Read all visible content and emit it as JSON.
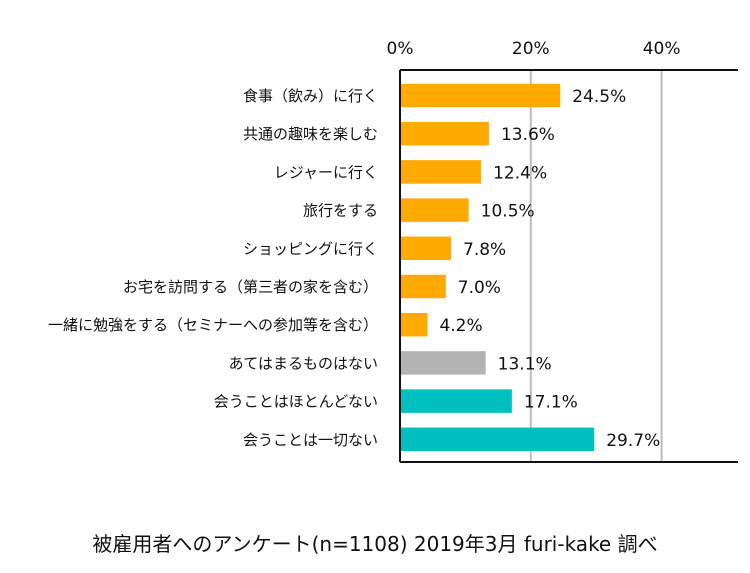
{
  "chart_data": {
    "type": "bar",
    "orientation": "horizontal",
    "categories": [
      "食事（飲み）に行く",
      "共通の趣味を楽しむ",
      "レジャーに行く",
      "旅行をする",
      "ショッピングに行く",
      "お宅を訪問する（第三者の家を含む）",
      "一緒に勉強をする（セミナーへの参加等を含む）",
      "あてはまるものはない",
      "会うことはほとんどない",
      "会うことは一切ない"
    ],
    "values": [
      24.5,
      13.6,
      12.4,
      10.5,
      7.8,
      7.0,
      4.2,
      13.1,
      17.1,
      29.7
    ],
    "value_labels": [
      "24.5%",
      "13.6%",
      "12.4%",
      "10.5%",
      "7.8%",
      "7.0%",
      "4.2%",
      "13.1%",
      "17.1%",
      "29.7%"
    ],
    "bar_colors": [
      "#FFAA00",
      "#FFAA00",
      "#FFAA00",
      "#FFAA00",
      "#FFAA00",
      "#FFAA00",
      "#FFAA00",
      "#B3B3B3",
      "#00BFBF",
      "#00BFBF"
    ],
    "x_ticks": [
      0,
      20,
      40
    ],
    "x_tick_labels": [
      "0%",
      "20%",
      "40%"
    ],
    "xlim": [
      0,
      50
    ],
    "grid": true,
    "axis_position": "top",
    "source": "被雇用者へのアンケート(n=1108) 2019年3月 furi-kake 調べ"
  }
}
